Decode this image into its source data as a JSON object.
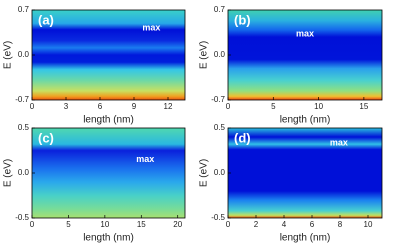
{
  "chart_data": [
    {
      "type": "heatmap",
      "annotations": [
        "(a)",
        "max"
      ],
      "xlabel": "length (nm)",
      "ylabel": "E (eV)",
      "xlim": [
        0,
        13.5
      ],
      "xticks": [
        0,
        3,
        6,
        9,
        12
      ],
      "ylim": [
        -0.7,
        0.7
      ],
      "yticks": [
        -0.7,
        {
          "value": 0,
          "label": "0.0"
        },
        0.7
      ]
    },
    {
      "type": "heatmap",
      "annotations": [
        "(b)",
        "max"
      ],
      "xlabel": "length (nm)",
      "ylabel": "E (eV)",
      "xlim": [
        0,
        17
      ],
      "xticks": [
        0,
        5,
        10,
        15
      ],
      "ylim": [
        -0.7,
        0.7
      ],
      "yticks": [
        -0.7,
        {
          "value": 0,
          "label": "0.0"
        },
        0.7
      ]
    },
    {
      "type": "heatmap",
      "annotations": [
        "(c)",
        "max"
      ],
      "xlabel": "length (nm)",
      "ylabel": "E (eV)",
      "xlim": [
        0,
        21
      ],
      "xticks": [
        0,
        5,
        10,
        15,
        20
      ],
      "ylim": [
        -0.5,
        0.5
      ],
      "yticks": [
        -0.5,
        {
          "value": 0,
          "label": "0.0"
        },
        0.5
      ]
    },
    {
      "type": "heatmap",
      "annotations": [
        "(d)",
        "max"
      ],
      "xlabel": "length (nm)",
      "ylabel": "E (eV)",
      "xlim": [
        0,
        11
      ],
      "xticks": [
        0,
        2,
        4,
        6,
        8,
        10
      ],
      "ylim": [
        -0.5,
        0.5
      ],
      "yticks": [
        -0.5,
        {
          "value": 0,
          "label": "0.0"
        },
        0.5
      ]
    }
  ]
}
